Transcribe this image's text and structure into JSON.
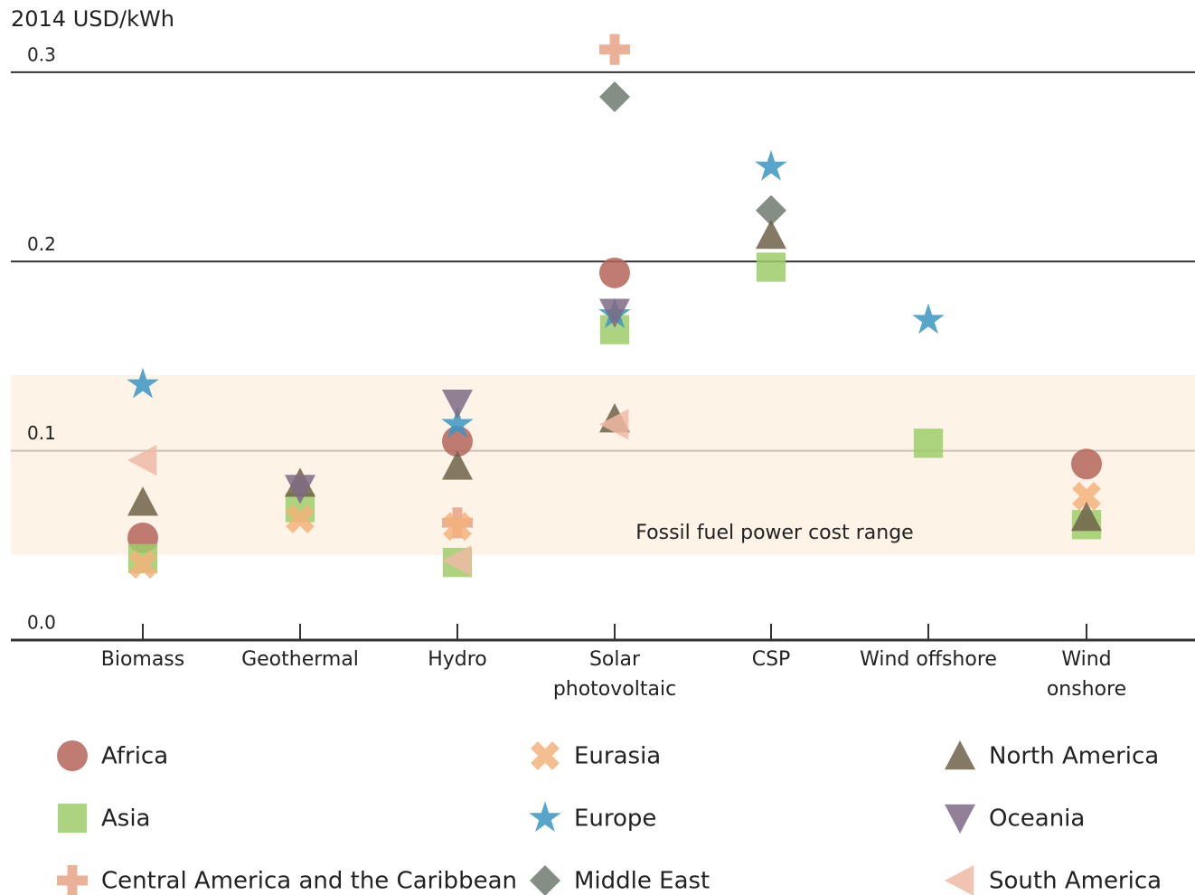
{
  "chart_data": {
    "type": "scatter",
    "ylabel": "2014 USD/kWh",
    "categories": [
      "Biomass",
      "Geothermal",
      "Hydro",
      "Solar\nphotovoltaic",
      "CSP",
      "Wind offshore",
      "Wind\nonshore"
    ],
    "ylim": [
      0,
      0.32
    ],
    "yticks": [
      {
        "value": 0,
        "label": "0.0"
      },
      0.1,
      0.2,
      0.3
    ],
    "band": {
      "label": "Fossil fuel power cost range",
      "range": [
        0.045,
        0.14
      ],
      "color": "#fdf3e6"
    },
    "series": [
      {
        "name": "Africa",
        "marker": "circle",
        "color": "#b5655a",
        "values": [
          0.054,
          null,
          0.105,
          0.194,
          null,
          null,
          0.093
        ]
      },
      {
        "name": "Asia",
        "marker": "square",
        "color": "#9dcc6a",
        "values": [
          0.043,
          0.07,
          0.041,
          0.164,
          0.197,
          0.104,
          0.061
        ]
      },
      {
        "name": "Central America and the Caribbean",
        "marker": "plus",
        "color": "#e8a286",
        "values": [
          null,
          null,
          0.062,
          0.312,
          null,
          null,
          null
        ]
      },
      {
        "name": "Eurasia",
        "marker": "x",
        "color": "#f5b27a",
        "values": [
          0.04,
          0.064,
          0.06,
          null,
          null,
          null,
          0.076
        ]
      },
      {
        "name": "Europe",
        "marker": "star",
        "color": "#3a95c2",
        "values": [
          0.135,
          null,
          0.114,
          0.172,
          0.25,
          0.169,
          null
        ]
      },
      {
        "name": "Middle East",
        "marker": "diamond",
        "color": "#6f7a6e",
        "values": [
          null,
          null,
          null,
          0.287,
          0.227,
          null,
          null
        ]
      },
      {
        "name": "North America",
        "marker": "triangle-up",
        "color": "#6e6249",
        "values": [
          0.073,
          0.083,
          0.092,
          0.117,
          0.214,
          null,
          0.065
        ]
      },
      {
        "name": "Oceania",
        "marker": "triangle-down",
        "color": "#7e6a85",
        "values": [
          null,
          0.08,
          0.125,
          0.173,
          null,
          null,
          null
        ]
      },
      {
        "name": "South America",
        "marker": "triangle-left",
        "color": "#eeb8a4",
        "values": [
          0.095,
          null,
          0.042,
          0.114,
          null,
          null,
          null
        ]
      }
    ]
  }
}
